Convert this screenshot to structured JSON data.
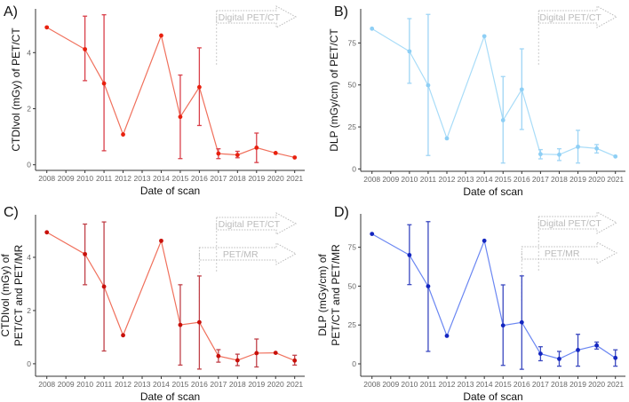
{
  "chart_data": [
    {
      "type": "line",
      "panel_label": "A)",
      "ylabel": [
        "CTDIvol (mGy) of PET/CT"
      ],
      "xlabel": "Date of scan",
      "ylim": [
        -0.2,
        5.56
      ],
      "yticks": [
        0,
        2,
        4
      ],
      "xticks": [
        2008,
        2009,
        2010,
        2011,
        2012,
        2013,
        2014,
        2015,
        2016,
        2017,
        2018,
        2019,
        2020,
        2021
      ],
      "color": {
        "line": "#f0705c",
        "point": "#e8200e",
        "error": "#d9404a"
      },
      "x": [
        2008,
        2010,
        2011,
        2012,
        2014,
        2015,
        2016,
        2017,
        2018,
        2019,
        2020,
        2021
      ],
      "y": [
        4.9,
        4.12,
        2.9,
        1.08,
        4.61,
        1.71,
        2.77,
        0.4,
        0.35,
        0.61,
        0.42,
        0.26
      ],
      "err_low": [
        null,
        3.0,
        0.5,
        null,
        null,
        0.22,
        1.4,
        0.22,
        0.25,
        0.08,
        null,
        null
      ],
      "err_high": [
        null,
        5.3,
        5.35,
        null,
        null,
        3.2,
        4.17,
        0.57,
        0.48,
        1.13,
        null,
        null
      ],
      "annotations": [
        {
          "text": "Digital PET/CT",
          "start_year": 2016.9
        }
      ]
    },
    {
      "type": "line",
      "panel_label": "B)",
      "ylabel": [
        "DLP (mGy/cm) of PET/CT"
      ],
      "xlabel": "Date of scan",
      "ylim": [
        -1.4,
        95.3
      ],
      "yticks": [
        0,
        25,
        50,
        75
      ],
      "xticks": [
        2008,
        2009,
        2010,
        2011,
        2012,
        2013,
        2014,
        2015,
        2016,
        2017,
        2018,
        2019,
        2020,
        2021
      ],
      "color": {
        "line": "#a8dcf8",
        "point": "#8ecff5",
        "error": "#9fd5f5"
      },
      "x": [
        2008,
        2010,
        2011,
        2012,
        2014,
        2015,
        2016,
        2017,
        2018,
        2019,
        2020,
        2021
      ],
      "y": [
        83.5,
        70,
        49.8,
        18.2,
        79,
        29,
        47.3,
        8.8,
        8.5,
        13.2,
        12.2,
        7.4
      ],
      "err_low": [
        null,
        51,
        8,
        null,
        null,
        3.5,
        23.5,
        6,
        5,
        3.5,
        9.5,
        null
      ],
      "err_high": [
        null,
        89.5,
        92,
        null,
        null,
        55,
        71.5,
        11.5,
        12,
        23,
        14.5,
        null
      ],
      "annotations": [
        {
          "text": "Digital PET/CT",
          "start_year": 2016.9
        }
      ]
    },
    {
      "type": "line",
      "panel_label": "C)",
      "ylabel": [
        "CTDIvol (mGy) of",
        "PET/CT and PET/MR"
      ],
      "xlabel": "Date of scan",
      "ylim": [
        -0.47,
        5.6
      ],
      "yticks": [
        0,
        2,
        4
      ],
      "xticks": [
        2008,
        2009,
        2010,
        2011,
        2012,
        2013,
        2014,
        2015,
        2016,
        2017,
        2018,
        2019,
        2020,
        2021
      ],
      "color": {
        "line": "#f0705c",
        "point": "#c8100a",
        "error": "#c04048"
      },
      "x": [
        2008,
        2010,
        2011,
        2012,
        2014,
        2015,
        2016,
        2017,
        2018,
        2019,
        2020,
        2021
      ],
      "y": [
        4.94,
        4.12,
        2.9,
        1.07,
        4.62,
        1.46,
        1.56,
        0.29,
        0.13,
        0.4,
        0.41,
        0.12
      ],
      "err_low": [
        null,
        2.97,
        0.48,
        null,
        null,
        -0.05,
        -0.2,
        0.06,
        -0.07,
        -0.12,
        null,
        -0.05
      ],
      "err_high": [
        null,
        5.25,
        5.33,
        null,
        null,
        2.97,
        3.3,
        0.53,
        0.36,
        0.93,
        null,
        0.32
      ],
      "annotations": [
        {
          "text": "Digital PET/CT",
          "start_year": 2016.9
        },
        {
          "text": "PET/MR",
          "start_year": 2016
        }
      ]
    },
    {
      "type": "line",
      "panel_label": "D)",
      "ylabel": [
        "DLP (mGy/cm) of",
        "PET/CT and PET/MR"
      ],
      "xlabel": "Date of scan",
      "ylim": [
        -8,
        96.5
      ],
      "yticks": [
        0,
        25,
        50,
        75
      ],
      "xticks": [
        2008,
        2009,
        2010,
        2011,
        2012,
        2013,
        2014,
        2015,
        2016,
        2017,
        2018,
        2019,
        2020,
        2021
      ],
      "color": {
        "line": "#6a86f2",
        "point": "#1426c0",
        "error": "#3a48c0"
      },
      "x": [
        2008,
        2010,
        2011,
        2012,
        2014,
        2015,
        2016,
        2017,
        2018,
        2019,
        2020,
        2021
      ],
      "y": [
        83.6,
        70,
        49.9,
        18,
        79.2,
        24.7,
        26.7,
        6.5,
        3.2,
        8.9,
        11.8,
        3.8
      ],
      "err_low": [
        null,
        51,
        8,
        null,
        null,
        -1,
        -3.5,
        2,
        -1.5,
        -1.5,
        9.5,
        -1.5
      ],
      "err_high": [
        null,
        89.5,
        91.5,
        null,
        null,
        50.8,
        56.6,
        11,
        8,
        19,
        14,
        9
      ],
      "annotations": [
        {
          "text": "Digital PET/CT",
          "start_year": 2016.9
        },
        {
          "text": "PET/MR",
          "start_year": 2016
        }
      ]
    }
  ]
}
